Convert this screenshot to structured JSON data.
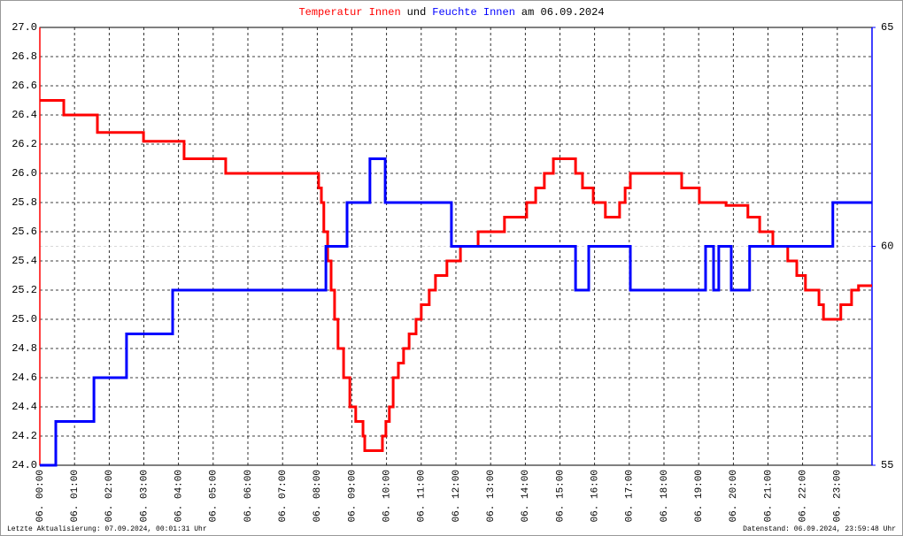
{
  "chart_data": {
    "type": "line",
    "step": true,
    "title": [
      {
        "text": "Temperatur Innen",
        "color": "#ff0000"
      },
      {
        "text": "und",
        "color": "#000000"
      },
      {
        "text": "Feuchte Innen",
        "color": "#0000ff"
      },
      {
        "text": "am 06.09.2024",
        "color": "#000000"
      }
    ],
    "footer_left": "Letzte Aktualisierung: 07.09.2024, 00:01:31 Uhr",
    "footer_right": "Datenstand: 06.09.2024, 23:59:48 Uhr",
    "xlim": [
      0,
      24
    ],
    "xticks": [
      {
        "value": 0,
        "label": "06. 00:00"
      },
      {
        "value": 1,
        "label": "06. 01:00"
      },
      {
        "value": 2,
        "label": "06. 02:00"
      },
      {
        "value": 3,
        "label": "06. 03:00"
      },
      {
        "value": 4,
        "label": "06. 04:00"
      },
      {
        "value": 5,
        "label": "06. 05:00"
      },
      {
        "value": 6,
        "label": "06. 06:00"
      },
      {
        "value": 7,
        "label": "06. 07:00"
      },
      {
        "value": 8,
        "label": "06. 08:00"
      },
      {
        "value": 9,
        "label": "06. 09:00"
      },
      {
        "value": 10,
        "label": "06. 10:00"
      },
      {
        "value": 11,
        "label": "06. 11:00"
      },
      {
        "value": 12,
        "label": "06. 12:00"
      },
      {
        "value": 13,
        "label": "06. 13:00"
      },
      {
        "value": 14,
        "label": "06. 14:00"
      },
      {
        "value": 15,
        "label": "06. 15:00"
      },
      {
        "value": 16,
        "label": "06. 16:00"
      },
      {
        "value": 17,
        "label": "06. 17:00"
      },
      {
        "value": 18,
        "label": "06. 18:00"
      },
      {
        "value": 19,
        "label": "06. 19:00"
      },
      {
        "value": 20,
        "label": "06. 20:00"
      },
      {
        "value": 21,
        "label": "06. 21:00"
      },
      {
        "value": 22,
        "label": "06. 22:00"
      },
      {
        "value": 23,
        "label": "06. 23:00"
      }
    ],
    "ylim": [
      24,
      27
    ],
    "yticks": [
      {
        "value": 24,
        "label": "24.0"
      },
      24.2,
      24.4,
      24.6,
      24.8,
      {
        "value": 25,
        "label": "25.0"
      },
      25.2,
      25.4,
      25.6,
      25.8,
      {
        "value": 26,
        "label": "26.0"
      },
      26.2,
      26.4,
      26.6,
      26.8,
      {
        "value": 27,
        "label": "27.0"
      }
    ],
    "y2lim": [
      55,
      65
    ],
    "y2ticks": [
      55,
      60,
      65
    ],
    "grid": true,
    "series": [
      {
        "name": "Temperatur Innen",
        "color": "#ff0000",
        "x": [
          0,
          0.69,
          1.66,
          2.99,
          4.16,
          5.36,
          7.91,
          8.04,
          8.12,
          8.19,
          8.3,
          8.4,
          8.5,
          8.6,
          8.76,
          8.94,
          9.11,
          9.32,
          9.37,
          9.78,
          9.88,
          9.98,
          10.08,
          10.19,
          10.34,
          10.49,
          10.65,
          10.85,
          11.0,
          11.23,
          11.41,
          11.74,
          12.13,
          12.64,
          13.4,
          14.04,
          14.3,
          14.55,
          14.81,
          15.45,
          15.65,
          15.96,
          16.31,
          16.72,
          16.88,
          17.03,
          18.51,
          19.02,
          19.79,
          20.42,
          20.76,
          21.14,
          21.57,
          21.83,
          22.08,
          22.47,
          22.6,
          23.1,
          23.41,
          23.61
        ],
        "values": [
          26.5,
          26.4,
          26.28,
          26.22,
          26.1,
          26.0,
          26.0,
          25.9,
          25.8,
          25.6,
          25.4,
          25.2,
          25.0,
          24.8,
          24.6,
          24.4,
          24.3,
          24.2,
          24.1,
          24.1,
          24.2,
          24.3,
          24.4,
          24.6,
          24.7,
          24.8,
          24.9,
          25.0,
          25.1,
          25.2,
          25.3,
          25.4,
          25.5,
          25.6,
          25.7,
          25.8,
          25.9,
          26.0,
          26.1,
          26.0,
          25.9,
          25.8,
          25.7,
          25.8,
          25.9,
          26.0,
          25.9,
          25.8,
          25.78,
          25.7,
          25.6,
          25.5,
          25.4,
          25.3,
          25.2,
          25.1,
          25.0,
          25.1,
          25.2,
          25.23
        ]
      },
      {
        "name": "Feuchte Innen",
        "color": "#0000ff",
        "axis": "y2",
        "x": [
          0,
          0.46,
          1.56,
          2.5,
          3.83,
          8.25,
          8.86,
          9.52,
          9.96,
          11.87,
          15.45,
          15.83,
          17.03,
          19.2,
          19.43,
          19.58,
          19.94,
          20.47,
          22.87
        ],
        "values": [
          55,
          56,
          57,
          58,
          59,
          60,
          61,
          62,
          61,
          60,
          59,
          60,
          59,
          60,
          59,
          60,
          59,
          60,
          61
        ]
      }
    ]
  }
}
